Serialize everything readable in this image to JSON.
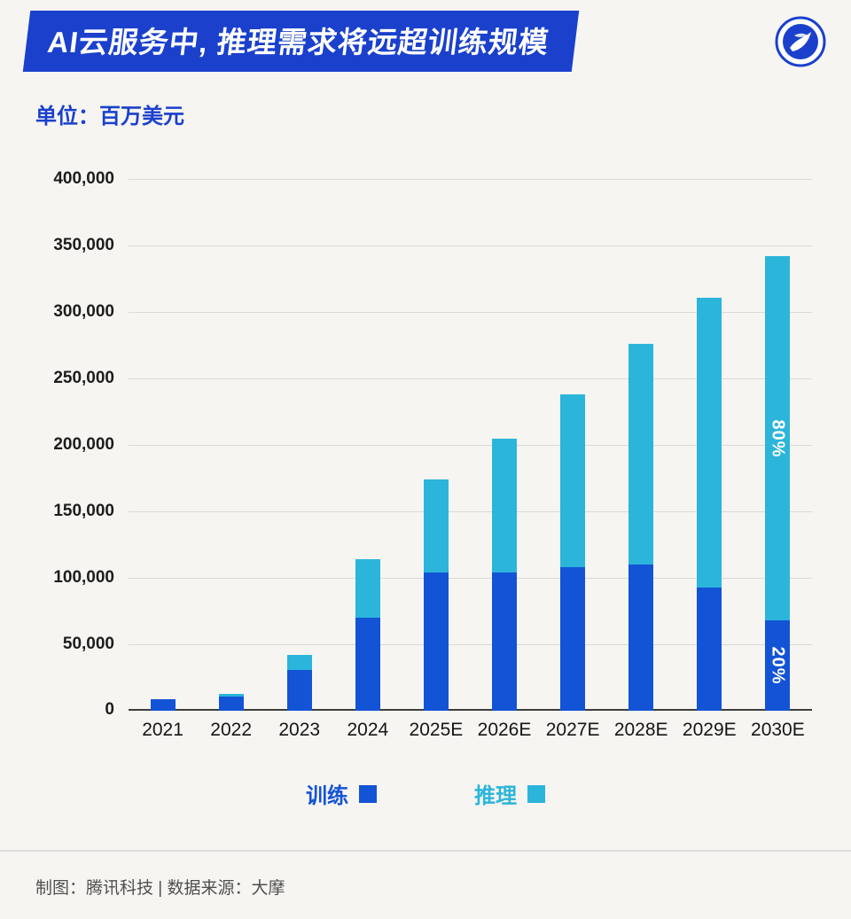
{
  "header": {
    "title": "AI云服务中, 推理需求将远超训练规模",
    "banner_color": "#1a40cc",
    "logo_icon": "tencent-tech-logo"
  },
  "unit_label": "单位：百万美元",
  "chart_data": {
    "type": "bar",
    "stacked": true,
    "categories": [
      "2021",
      "2022",
      "2023",
      "2024",
      "2025E",
      "2026E",
      "2027E",
      "2028E",
      "2029E",
      "2030E"
    ],
    "series": [
      {
        "name": "训练",
        "color": "#1353d6",
        "values": [
          9000,
          11000,
          31000,
          70000,
          104000,
          104000,
          108000,
          110000,
          93000,
          68000
        ]
      },
      {
        "name": "推理",
        "color": "#2cb5da",
        "values": [
          0,
          2000,
          11000,
          44000,
          70000,
          101000,
          130000,
          166000,
          218000,
          274000
        ]
      }
    ],
    "ylim": [
      0,
      400000
    ],
    "ytick_step": 50000,
    "yticks": [
      "0",
      "50,000",
      "100,000",
      "150,000",
      "200,000",
      "250,000",
      "300,000",
      "350,000",
      "400,000"
    ],
    "grid": true,
    "legend_position": "bottom",
    "annotations": [
      {
        "category": "2030E",
        "series": "推理",
        "text": "80%"
      },
      {
        "category": "2030E",
        "series": "训练",
        "text": "20%"
      }
    ]
  },
  "legend": [
    {
      "label": "训练",
      "color": "#1353d6"
    },
    {
      "label": "推理",
      "color": "#2cb5da"
    }
  ],
  "footer": {
    "text": "制图：腾讯科技 | 数据来源：大摩"
  }
}
